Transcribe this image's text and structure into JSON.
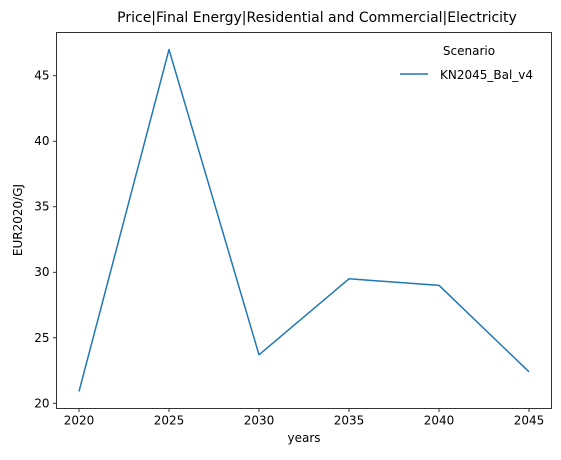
{
  "chart_data": {
    "type": "line",
    "title": "Price|Final Energy|Residential and Commercial|Electricity",
    "xlabel": "years",
    "ylabel": "EUR2020/GJ",
    "x": [
      2020,
      2025,
      2030,
      2035,
      2040,
      2045
    ],
    "series": [
      {
        "name": "KN2045_Bal_v4",
        "values": [
          20.9,
          47.0,
          23.7,
          29.5,
          29.0,
          22.4
        ],
        "color": "#1f77b4"
      }
    ],
    "xticks": [
      "2020",
      "2025",
      "2030",
      "2035",
      "2040",
      "2045"
    ],
    "yticks": [
      "20",
      "25",
      "30",
      "35",
      "40",
      "45"
    ],
    "xlim": [
      2018.75,
      2046.25
    ],
    "ylim": [
      19.6,
      48.3
    ],
    "grid": false,
    "legend": {
      "title": "Scenario",
      "placement": "top-right"
    }
  }
}
